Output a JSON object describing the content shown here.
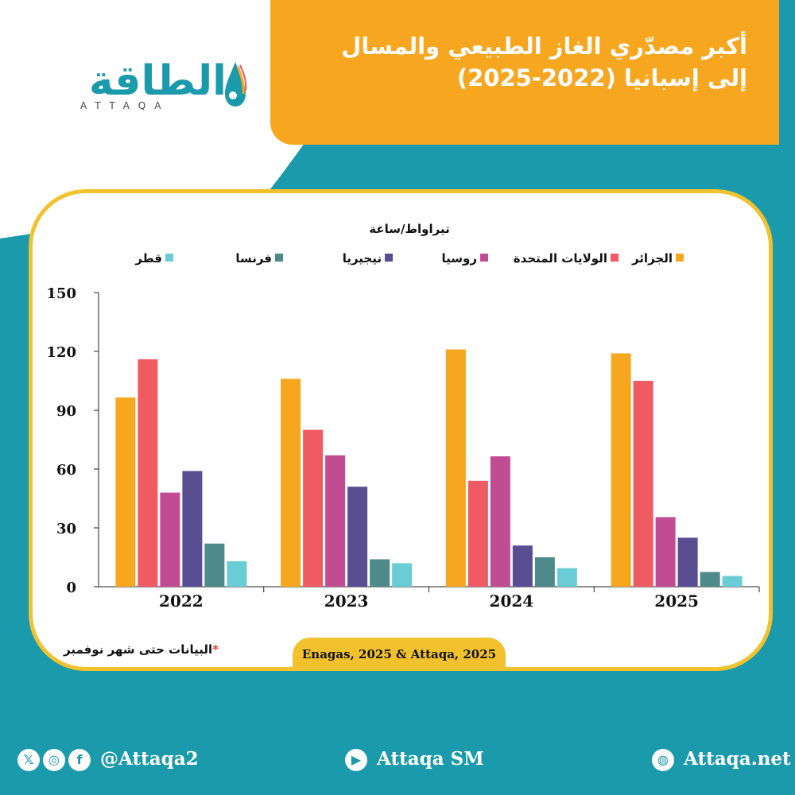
{
  "header": {
    "title_line1": "أكبر مصدّري الغاز الطبيعي والمسال",
    "title_line2": "إلى إسبانيا   (2022-2025)"
  },
  "logo": {
    "arabic": "الطاقة",
    "latin": "ATTAQA"
  },
  "colors": {
    "background": "#1a9aaa",
    "title_box": "#f7a61f",
    "card_border": "#f1c12e",
    "series": [
      "#f7a61f",
      "#ef5a63",
      "#c24c94",
      "#5a4e93",
      "#4f8a8b",
      "#6acdd6"
    ]
  },
  "chart_data": {
    "type": "bar",
    "unit": "تيراواط/ساعة",
    "categories": [
      "2022",
      "2023",
      "2024",
      "2025"
    ],
    "series": [
      {
        "name": "الجزائر",
        "values": [
          96.5,
          106,
          121,
          119
        ]
      },
      {
        "name": "الولايات المتحدة",
        "values": [
          116,
          80,
          54,
          105
        ]
      },
      {
        "name": "روسيا",
        "values": [
          48,
          67,
          66.5,
          35.5
        ]
      },
      {
        "name": "نيجيريا",
        "values": [
          59,
          51,
          21,
          25
        ]
      },
      {
        "name": "فرنسا",
        "values": [
          22,
          14,
          15,
          7.5
        ]
      },
      {
        "name": "قطر",
        "values": [
          13,
          12,
          9.5,
          5.5
        ]
      }
    ],
    "yticks": [
      0,
      30,
      60,
      90,
      120,
      150
    ],
    "ylim": [
      0,
      150
    ],
    "legend_position": "top"
  },
  "footer": {
    "source": "Enagas, 2025 & Attaqa, 2025",
    "note": "البيانات حتى شهر نوفمبر",
    "note_mark": "*",
    "social_handle": "@Attaqa2",
    "youtube": "Attaqa SM",
    "website": "Attaqa.net",
    "icons": {
      "x": "x-icon",
      "instagram": "instagram-icon",
      "facebook": "facebook-icon",
      "youtube": "youtube-icon",
      "web": "globe-icon"
    }
  }
}
